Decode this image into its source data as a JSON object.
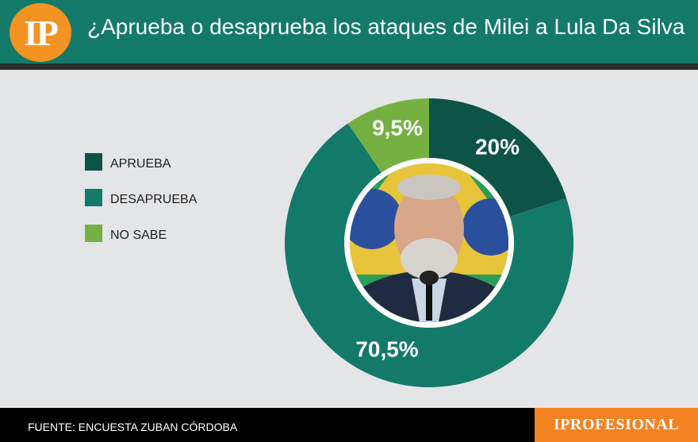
{
  "header": {
    "logo_text": "IP",
    "title": "¿Aprueba o desaprueba los ataques de Milei a Lula Da Silva"
  },
  "chart_data": {
    "type": "pie",
    "variant": "donut",
    "title": "¿Aprueba o desaprueba los ataques de Milei a Lula Da Silva",
    "categories": [
      "APRUEBA",
      "DESAPRUEBA",
      "NO SABE"
    ],
    "values": [
      20,
      70.5,
      9.5
    ],
    "labels": [
      "20%",
      "70,5%",
      "9,5%"
    ],
    "colors": [
      "#0d5445",
      "#137a69",
      "#75b043"
    ],
    "legend_position": "left",
    "center_image": "photo-of-lula"
  },
  "footer": {
    "source": "FUENTE: ENCUESTA ZUBAN CÓRDOBA",
    "brand": "IPROFESIONAL"
  }
}
